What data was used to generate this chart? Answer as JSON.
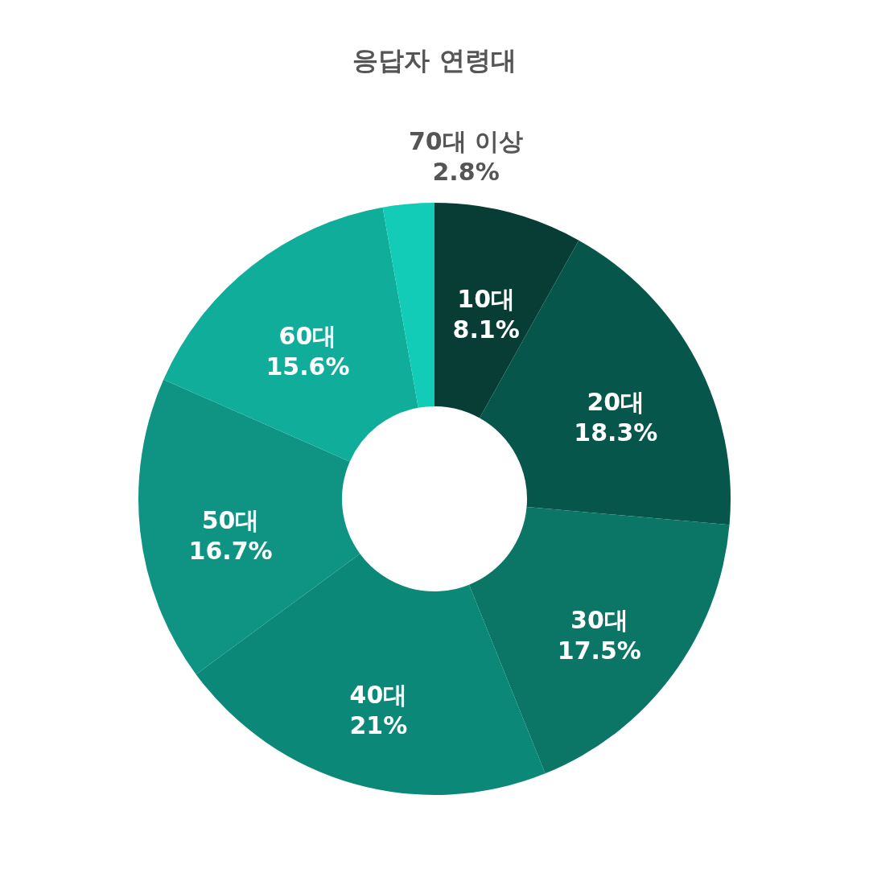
{
  "chart_data": {
    "type": "donut",
    "title": "응답자 연령대",
    "categories": [
      "10대",
      "20대",
      "30대",
      "40대",
      "50대",
      "60대",
      "70대 이상"
    ],
    "values": [
      8.1,
      18.3,
      17.5,
      21,
      16.7,
      15.6,
      2.8
    ],
    "value_labels": [
      "8.1%",
      "18.3%",
      "17.5%",
      "21%",
      "16.7%",
      "15.6%",
      "2.8%"
    ],
    "colors": [
      "#083d36",
      "#07564b",
      "#0b7566",
      "#0c8878",
      "#0f9484",
      "#10ad9b",
      "#12ccb8"
    ]
  }
}
